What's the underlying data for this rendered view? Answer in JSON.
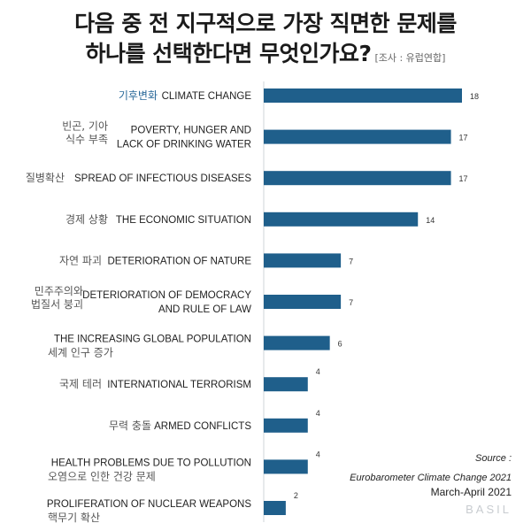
{
  "header": {
    "title_line1": "다음 중 전 지구적으로 가장 직면한 문제를",
    "title_line2": "하나를 선택한다면 무엇인가요?",
    "survey_note": "[조사 : 유럽연합]"
  },
  "colors": {
    "bar": "#1f5f8b",
    "highlight_text": "#2b6a9a",
    "english_text": "#222222",
    "korean_text": "#555555"
  },
  "chart_data": {
    "type": "bar",
    "orientation": "horizontal",
    "xlim": [
      0,
      18
    ],
    "grid": false,
    "categories": [
      {
        "ko": [
          "기후변화"
        ],
        "en": [
          "CLIMATE CHANGE"
        ],
        "value": 18,
        "highlight": true
      },
      {
        "ko": [
          "빈곤, 기아",
          "식수 부족"
        ],
        "en": [
          "POVERTY, HUNGER AND",
          "LACK OF DRINKING WATER"
        ],
        "value": 17
      },
      {
        "ko": [
          "질병확산"
        ],
        "en": [
          "SPREAD OF INFECTIOUS DISEASES"
        ],
        "value": 17
      },
      {
        "ko": [
          "경제 상황"
        ],
        "en": [
          "THE ECONOMIC SITUATION"
        ],
        "value": 14
      },
      {
        "ko": [
          "자연 파괴"
        ],
        "en": [
          "DETERIORATION OF NATURE"
        ],
        "value": 7
      },
      {
        "ko": [
          "민주주의와",
          "법질서 붕괴"
        ],
        "en": [
          "DETERIORATION OF DEMOCRACY",
          "AND RULE OF LAW"
        ],
        "value": 7
      },
      {
        "ko": [
          "세계 인구 증가"
        ],
        "en": [
          "THE INCREASING GLOBAL POPULATION"
        ],
        "value": 6,
        "ko_below": true
      },
      {
        "ko": [
          "국제 테러"
        ],
        "en": [
          "INTERNATIONAL TERRORISM"
        ],
        "value": 4
      },
      {
        "ko": [
          "무력 충돌"
        ],
        "en": [
          "ARMED CONFLICTS"
        ],
        "value": 4
      },
      {
        "ko": [
          "오염으로 인한 건강 문제"
        ],
        "en": [
          "HEALTH PROBLEMS DUE TO POLLUTION"
        ],
        "value": 4,
        "ko_below": true
      },
      {
        "ko": [
          "핵무기 확산"
        ],
        "en": [
          "PROLIFERATION OF NUCLEAR WEAPONS"
        ],
        "value": 2,
        "ko_below": true
      }
    ]
  },
  "source": {
    "label": "Source :",
    "name": "Eurobarometer Climate Change 2021",
    "date": "March-April 2021"
  },
  "brand": "BASIL"
}
